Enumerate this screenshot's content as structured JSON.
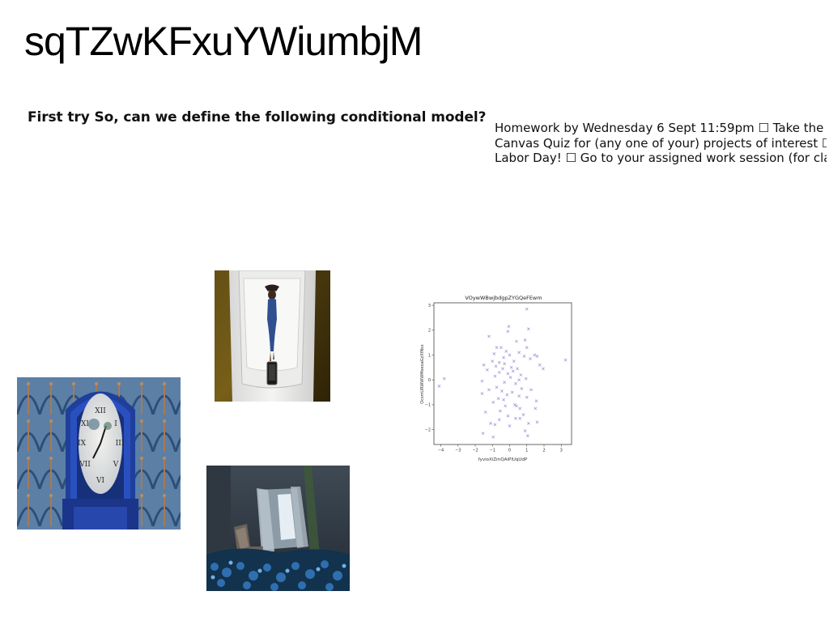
{
  "slide": {
    "title": "sqTZwKFxuYWiumbjM",
    "subtitle": "First try So, can we define the following conditional model?",
    "homework_lines": [
      "Homework by Wednesday 6 Sept 11:59pm ☐ Take the",
      "Canvas Quiz for (any one of your) projects of interest ☐",
      "Labor Day! ☐ Go to your assigned work session (for class"
    ]
  },
  "images": [
    {
      "name": "woman-on-boat-photo",
      "icon": "photo-icon"
    },
    {
      "name": "blue-grandfather-clock-photo",
      "icon": "photo-icon"
    },
    {
      "name": "room-with-blue-flowers-photo",
      "icon": "photo-icon"
    }
  ],
  "chart_data": {
    "type": "scatter",
    "title": "VOywWBwjbdgpZYGQeFEwm",
    "xlabel": "fyvioXiZmQAiPlUqUdP",
    "ylabel": "OcsmURWWWMoeoaGzXfNsx",
    "xlim": [
      -4.4,
      3.6
    ],
    "ylim": [
      -2.6,
      3.1
    ],
    "xticks": [
      -4,
      -3,
      -2,
      -1,
      0,
      1,
      2,
      3
    ],
    "yticks": [
      -2,
      -1,
      0,
      1,
      2,
      3
    ],
    "grid": false,
    "marker": "x",
    "color": "#9b8fd6",
    "series": [
      {
        "points": [
          [
            1.0,
            2.85
          ],
          [
            -0.05,
            2.15
          ],
          [
            1.1,
            2.05
          ],
          [
            -0.1,
            1.95
          ],
          [
            -1.2,
            1.75
          ],
          [
            0.9,
            1.6
          ],
          [
            0.4,
            1.55
          ],
          [
            -0.75,
            1.3
          ],
          [
            -0.5,
            1.3
          ],
          [
            1.0,
            1.3
          ],
          [
            -0.2,
            1.15
          ],
          [
            0.55,
            1.1
          ],
          [
            -0.9,
            1.05
          ],
          [
            0.0,
            1.0
          ],
          [
            1.45,
            1.0
          ],
          [
            1.6,
            0.95
          ],
          [
            0.85,
            0.95
          ],
          [
            -0.35,
            0.9
          ],
          [
            1.2,
            0.85
          ],
          [
            3.25,
            0.8
          ],
          [
            -1.0,
            0.75
          ],
          [
            0.25,
            0.75
          ],
          [
            -0.6,
            0.7
          ],
          [
            -0.3,
            0.65
          ],
          [
            1.75,
            0.6
          ],
          [
            -1.5,
            0.6
          ],
          [
            -0.8,
            0.55
          ],
          [
            0.1,
            0.5
          ],
          [
            -0.4,
            0.45
          ],
          [
            0.45,
            0.45
          ],
          [
            1.95,
            0.45
          ],
          [
            -1.3,
            0.4
          ],
          [
            0.2,
            0.35
          ],
          [
            -0.6,
            0.3
          ],
          [
            -0.1,
            0.25
          ],
          [
            0.65,
            0.2
          ],
          [
            -0.85,
            0.15
          ],
          [
            0.05,
            0.1
          ],
          [
            -3.8,
            0.05
          ],
          [
            0.95,
            0.05
          ],
          [
            0.55,
            0.0
          ],
          [
            -1.6,
            -0.05
          ],
          [
            -0.3,
            -0.1
          ],
          [
            0.35,
            -0.15
          ],
          [
            -4.1,
            -0.25
          ],
          [
            -0.75,
            -0.3
          ],
          [
            0.7,
            -0.35
          ],
          [
            -1.2,
            -0.4
          ],
          [
            1.25,
            -0.4
          ],
          [
            -0.45,
            -0.45
          ],
          [
            0.15,
            -0.5
          ],
          [
            -1.6,
            -0.55
          ],
          [
            -0.15,
            -0.6
          ],
          [
            0.55,
            -0.65
          ],
          [
            1.0,
            -0.7
          ],
          [
            -0.65,
            -0.75
          ],
          [
            -0.35,
            -0.8
          ],
          [
            1.55,
            -0.85
          ],
          [
            -0.95,
            -0.9
          ],
          [
            0.3,
            -1.0
          ],
          [
            -0.25,
            -1.05
          ],
          [
            0.6,
            -1.15
          ],
          [
            1.5,
            -1.15
          ],
          [
            -0.55,
            -1.25
          ],
          [
            -1.4,
            -1.3
          ],
          [
            0.8,
            -1.4
          ],
          [
            -0.1,
            -1.45
          ],
          [
            0.35,
            -1.55
          ],
          [
            -0.6,
            -1.6
          ],
          [
            1.1,
            -1.75
          ],
          [
            -0.85,
            -1.8
          ],
          [
            0.0,
            -1.85
          ],
          [
            1.6,
            -1.7
          ],
          [
            0.6,
            -1.55
          ],
          [
            -1.1,
            -1.75
          ],
          [
            -1.55,
            -2.15
          ],
          [
            0.9,
            -2.05
          ],
          [
            -0.95,
            -2.3
          ],
          [
            1.05,
            -2.25
          ],
          [
            0.4,
            -1.05
          ]
        ]
      }
    ]
  }
}
